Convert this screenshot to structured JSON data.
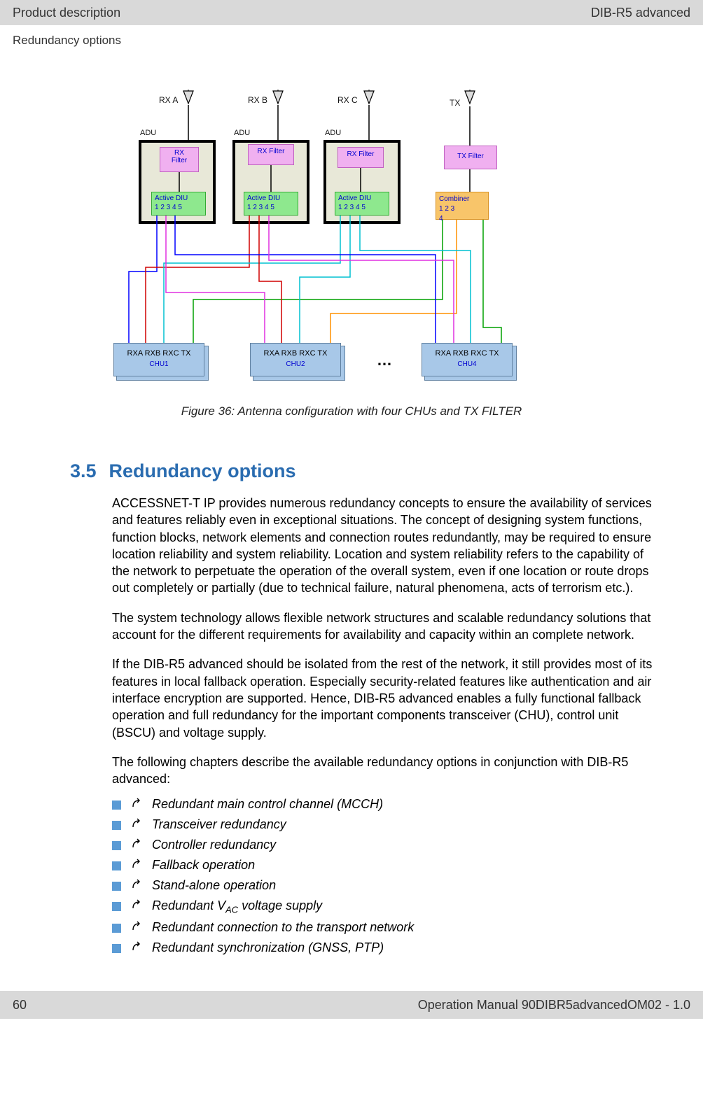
{
  "header": {
    "left": "Product description",
    "right": "DIB-R5 advanced",
    "sub": "Redundancy options"
  },
  "diagram": {
    "antennas": {
      "rxa": "RX A",
      "rxb": "RX B",
      "rxc": "RX C",
      "tx": "TX"
    },
    "adu_label": "ADU",
    "rx_filter": "RX Filter",
    "rx_filter_ml": "RX\nFilter",
    "active_diu_label": "Active DIU",
    "diu_ports": "1   2  3  4  5",
    "tx_filter": "TX Filter",
    "combiner_label": "Combiner",
    "combiner_ports1": "1    2    3",
    "combiner_ports2": "4",
    "chu_ports": "RXA  RXB  RXC     TX",
    "chu1": "CHU1",
    "chu2": "CHU2",
    "chu4": "CHU4",
    "ellipsis": "…",
    "colors": {
      "blue": "#0000ff",
      "red": "#d00000",
      "cyan": "#00c0d0",
      "magenta": "#e030e0",
      "green": "#00a000",
      "orange": "#ff9000",
      "black": "#000000"
    },
    "caption": "Figure 36: Antenna configuration with four CHUs and TX FILTER"
  },
  "section": {
    "num": "3.5",
    "title": "Redundancy options"
  },
  "para1": "ACCESSNET-T IP provides numerous redundancy concepts to ensure the availability of services and features reliably even in exceptional situations. The concept of designing system functions, function blocks, network elements and connection routes redundantly, may be required to ensure location reliability and system reliability. Location and system reliability refers to the capability of the network to perpetuate the operation of the overall system, even if one location or route drops out completely or partially (due to technical failure, natural phenomena, acts of terrorism etc.).",
  "para2": "The system technology allows flexible network structures and scalable redundancy solutions that account for the different requirements for availability and capacity within an complete network.",
  "para3": "If the DIB-R5 advanced should be isolated from the rest of the network, it still provides most of its features in local fallback operation. Especially security-related features like authentication and air interface encryption are supported. Hence, DIB-R5 advanced enables a fully functional fallback operation and full redundancy for the important components transceiver (CHU), control unit (BSCU) and voltage supply.",
  "para4": "The following chapters describe the available redundancy options in conjunction with DIB-R5 advanced:",
  "bullets": {
    "b1": "Redundant main control channel (MCCH)",
    "b2": "Transceiver redundancy",
    "b3": "Controller redundancy",
    "b4": "Fallback operation",
    "b5": "Stand-alone operation",
    "b6_pre": "Redundant V",
    "b6_sub": "AC",
    "b6_post": " voltage supply",
    "b7": "Redundant connection to the transport network",
    "b8": "Redundant synchronization (GNSS, PTP)"
  },
  "footer": {
    "page": "60",
    "doc": "Operation Manual 90DIBR5advancedOM02 - 1.0"
  }
}
